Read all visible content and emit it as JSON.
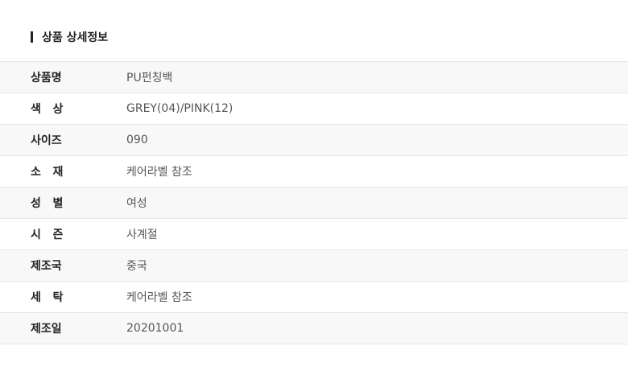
{
  "section_title": "상품 상세정보",
  "rows": [
    {
      "label": "상품명",
      "value": "PU펀칭백"
    },
    {
      "label": "색   상",
      "value": "GREY(04)/PINK(12)"
    },
    {
      "label": "사이즈",
      "value": "090"
    },
    {
      "label": "소   재",
      "value": "케어라벨 참조"
    },
    {
      "label": "성   별",
      "value": "여성"
    },
    {
      "label": "시   즌",
      "value": "사계절"
    },
    {
      "label": "제조국",
      "value": "중국"
    },
    {
      "label": "세   탁",
      "value": "케어라벨 참조"
    },
    {
      "label": "제조일",
      "value": "20201001"
    }
  ]
}
